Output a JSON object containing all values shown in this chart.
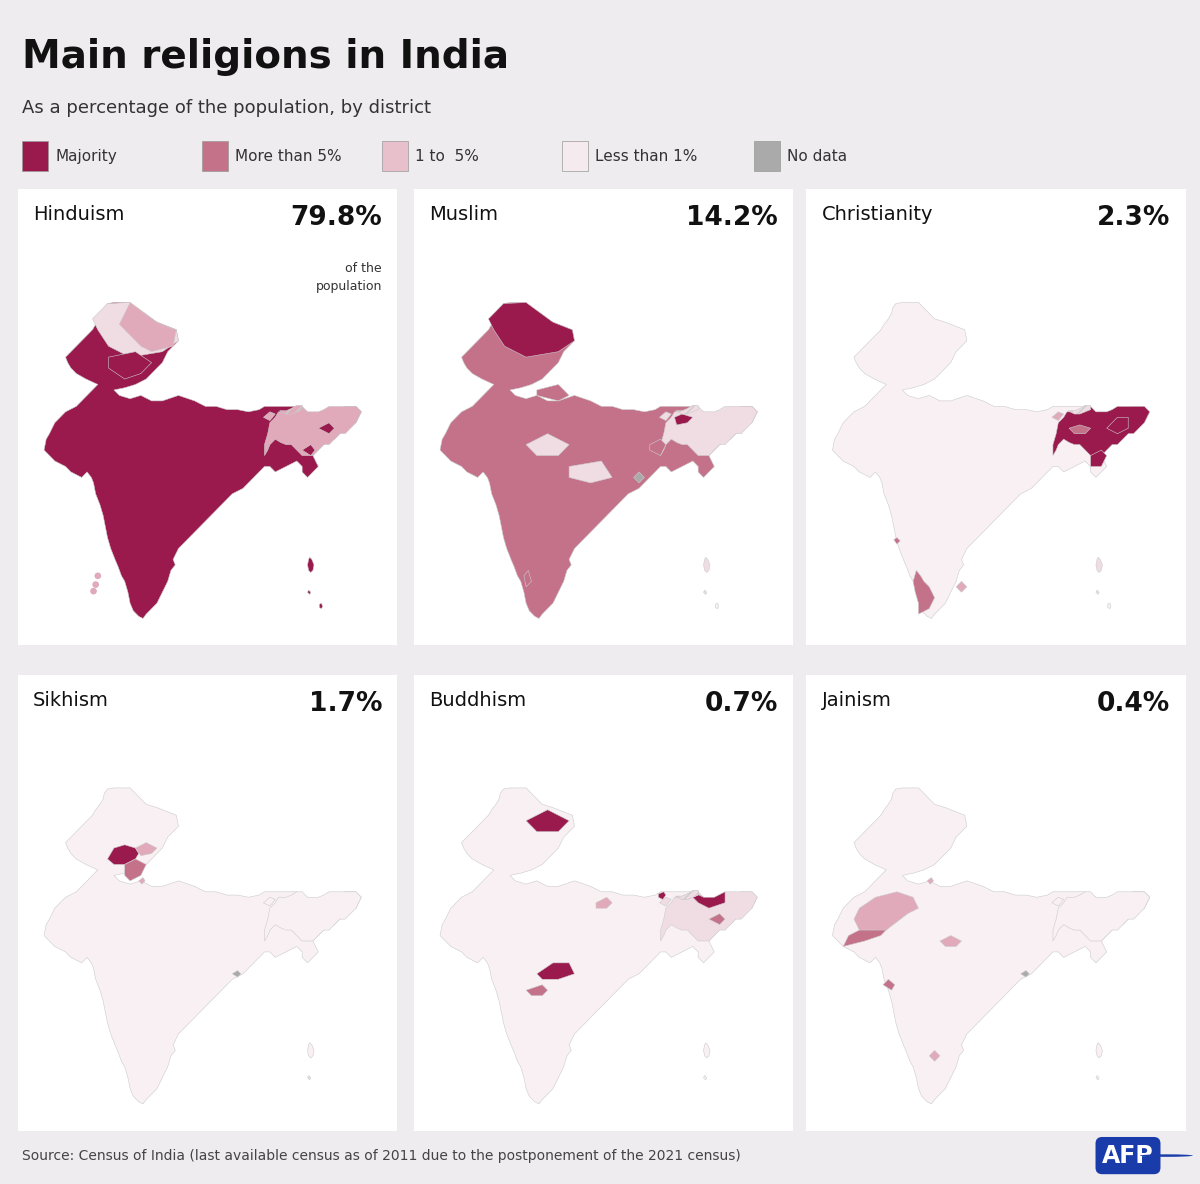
{
  "title": "Main religions in India",
  "subtitle": "As a percentage of the population, by district",
  "source": "Source: Census of India (last available census as of 2011 due to the postponement of the 2021 census)",
  "background_color": "#eeecee",
  "panel_color": "#ffffff",
  "top_bar_color": "#1a1a1a",
  "legend_items": [
    {
      "label": "Majority",
      "color": "#9b1a4e"
    },
    {
      "label": "More than 5%",
      "color": "#c4728a"
    },
    {
      "label": "1 to  5%",
      "color": "#e8c0cc"
    },
    {
      "label": "Less than 1%",
      "color": "#f5eaed"
    },
    {
      "label": "No data",
      "color": "#aaaaaa"
    }
  ],
  "panels": [
    {
      "name": "Hinduism",
      "percentage": "79.8%",
      "pct_sub": "of the\npopulation"
    },
    {
      "name": "Muslim",
      "percentage": "14.2%",
      "pct_sub": ""
    },
    {
      "name": "Christianity",
      "percentage": "2.3%",
      "pct_sub": ""
    },
    {
      "name": "Sikhism",
      "percentage": "1.7%",
      "pct_sub": ""
    },
    {
      "name": "Buddhism",
      "percentage": "0.7%",
      "pct_sub": ""
    },
    {
      "name": "Jainism",
      "percentage": "0.4%",
      "pct_sub": ""
    }
  ],
  "color_majority": "#9b1a4e",
  "color_5plus": "#c4728a",
  "color_1to5": "#e0aabb",
  "color_lt1": "#f0dde4",
  "color_verylt": "#f8f0f3",
  "color_nodata": "#aaaaaa",
  "border_color": "#cccccc",
  "afp_blue": "#1a3caa",
  "title_fontsize": 28,
  "subtitle_fontsize": 13,
  "panel_title_fontsize": 13,
  "panel_pct_fontsize": 17,
  "legend_fontsize": 11,
  "source_fontsize": 10
}
